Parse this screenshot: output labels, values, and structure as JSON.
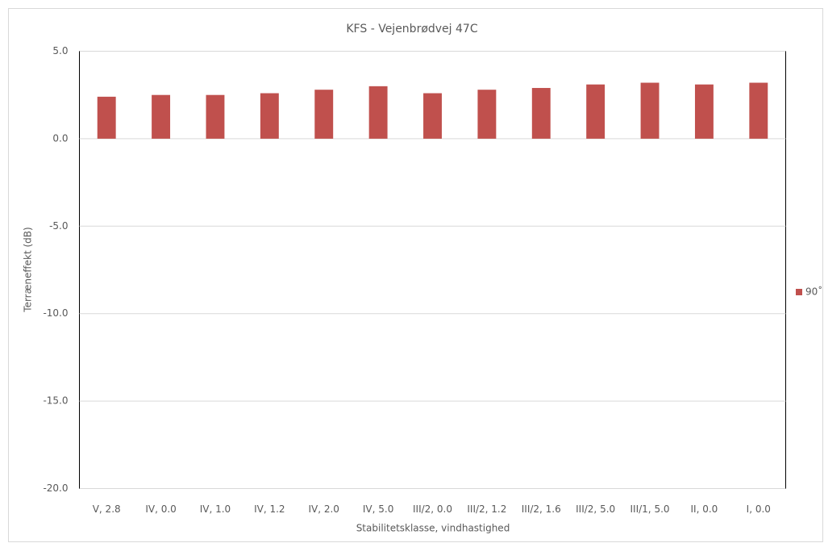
{
  "chart_data": {
    "type": "bar",
    "title": "KFS - Vejenbrødvej 47C",
    "x_label": "Stabilitetsklasse, vindhastighed",
    "y_label": "Terræneffekt (dB)",
    "categories": [
      "V, 2.8",
      "IV, 0.0",
      "IV, 1.0",
      "IV, 1.2",
      "IV, 2.0",
      "IV, 5.0",
      "III/2, 0.0",
      "III/2, 1.2",
      "III/2, 1.6",
      "III/2, 5.0",
      "III/1, 5.0",
      "II, 0.0",
      "I, 0.0"
    ],
    "series": [
      {
        "name": "90˚",
        "color": "#c0504d",
        "values": [
          2.4,
          2.5,
          2.5,
          2.6,
          2.8,
          3.0,
          2.6,
          2.8,
          2.9,
          3.1,
          3.2,
          3.1,
          3.2
        ]
      }
    ],
    "ylim": [
      -20,
      5
    ],
    "yticks": [
      {
        "value": -20,
        "label": "-20.0"
      },
      {
        "value": -15,
        "label": "-15.0"
      },
      {
        "value": -10,
        "label": "-10.0"
      },
      {
        "value": -5,
        "label": "-5.0"
      },
      {
        "value": 0,
        "label": "0.0"
      },
      {
        "value": 5,
        "label": "5.0"
      }
    ],
    "grid": true,
    "legend": "right"
  }
}
